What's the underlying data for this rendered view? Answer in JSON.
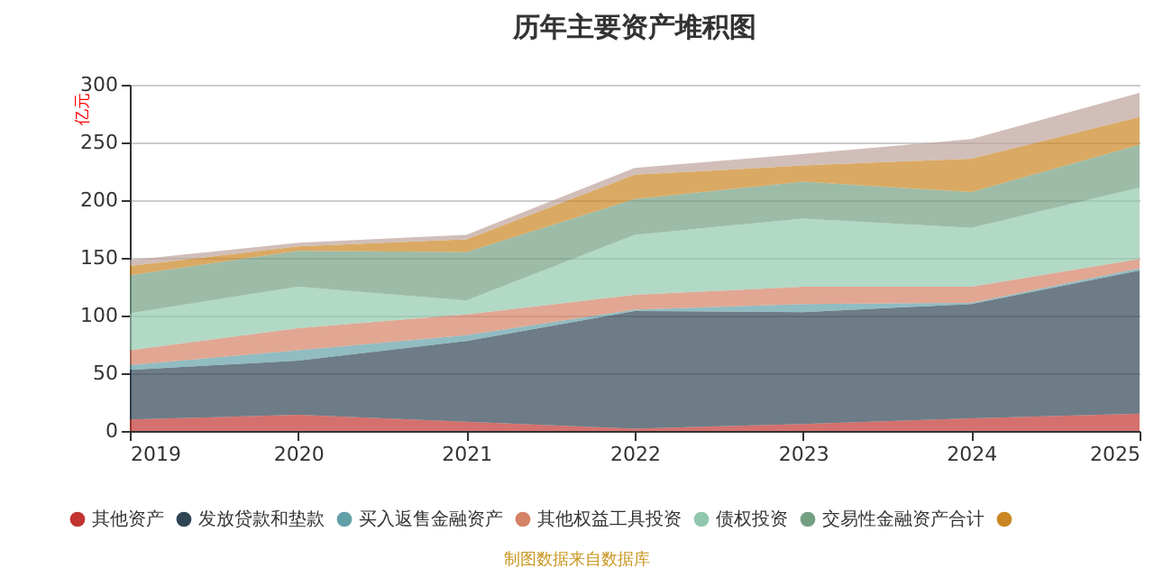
{
  "chart_data": {
    "type": "area",
    "title": "历年主要资产堆积图",
    "ylabel": "亿元",
    "stacked": true,
    "grid": "y",
    "legend": "bottom",
    "categories": [
      "2019",
      "2020",
      "2021",
      "2022",
      "2023",
      "2024",
      "2025"
    ],
    "ylim": [
      0,
      300
    ],
    "yticks": [
      0,
      50,
      100,
      150,
      200,
      250,
      300
    ],
    "annotations": [
      "制图数据来自数据库"
    ],
    "series": [
      {
        "name": "其他资产",
        "color": "#c23531",
        "values": [
          10,
          14,
          8,
          2,
          6,
          11,
          15
        ]
      },
      {
        "name": "发放贷款和垫款",
        "color": "#2f4554",
        "values": [
          43,
          47,
          70,
          102,
          97,
          99,
          124
        ]
      },
      {
        "name": "买入返售金融资产",
        "color": "#61a0a8",
        "values": [
          4,
          9,
          5,
          1,
          7,
          1,
          2
        ]
      },
      {
        "name": "其他权益工具投资",
        "color": "#d48265",
        "values": [
          13,
          19,
          18,
          13,
          15,
          14,
          8
        ]
      },
      {
        "name": "债权投资",
        "color": "#91c7ae",
        "values": [
          32,
          36,
          12,
          52,
          59,
          51,
          62
        ]
      },
      {
        "name": "交易性金融资产合计",
        "color": "#749f83",
        "values": [
          33,
          31,
          42,
          31,
          32,
          31,
          37
        ]
      },
      {
        "color": "#ca8622",
        "values": [
          8,
          4,
          11,
          21,
          14,
          29,
          24
        ]
      },
      {
        "color": "#bda29a",
        "values": [
          5,
          3,
          4,
          6,
          10,
          17,
          21
        ]
      }
    ]
  }
}
